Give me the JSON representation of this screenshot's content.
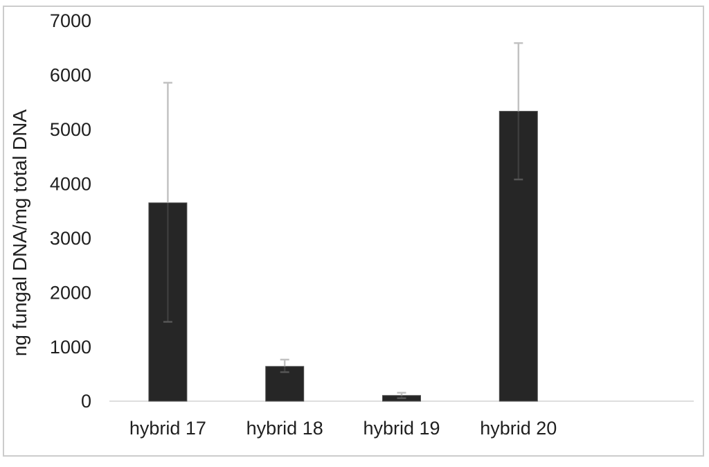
{
  "chart_data": {
    "type": "bar",
    "title": "",
    "xlabel": "",
    "ylabel": "ng fungal DNA/mg total DNA",
    "categories": [
      "hybrid 17",
      "hybrid 18",
      "hybrid 19",
      "hybrid 20"
    ],
    "values": [
      3650,
      640,
      105,
      5335
    ],
    "error_upper": [
      5860,
      765,
      155,
      6590
    ],
    "error_lower": [
      1460,
      535,
      55,
      4080
    ],
    "ylim": [
      0,
      7000
    ],
    "yticks": [
      0,
      1000,
      2000,
      3000,
      4000,
      5000,
      6000,
      7000
    ],
    "grid": false,
    "legend": "none",
    "num_category_slots": 5,
    "colors": {
      "bar_fill": "#262626",
      "bar_stroke": "#515151",
      "error_bar": "#c2c2c2",
      "error_bar_inside": "#3d3d3d",
      "error_cap_inside": "#565656",
      "axis_line": "#dedede",
      "text": "#1f1f1f",
      "frame_border": "#cccccc",
      "background": "#ffffff"
    }
  }
}
